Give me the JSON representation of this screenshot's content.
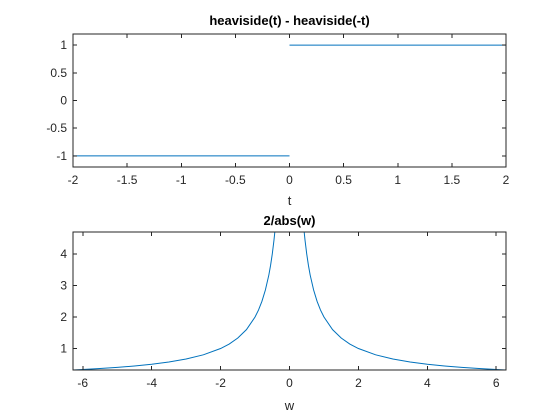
{
  "chart_data": [
    {
      "type": "line",
      "title": "heaviside(t) - heaviside(-t)",
      "xlabel": "t",
      "ylabel": "",
      "xlim": [
        -2,
        2
      ],
      "ylim": [
        -1.2,
        1.2
      ],
      "xticks": [
        -2,
        -1.5,
        -1,
        -0.5,
        0,
        0.5,
        1,
        1.5,
        2
      ],
      "xtick_labels": [
        "-2",
        "-1.5",
        "-1",
        "-0.5",
        "0",
        "0.5",
        "1",
        "1.5",
        "2"
      ],
      "yticks": [
        -1,
        -0.5,
        0,
        0.5,
        1
      ],
      "ytick_labels": [
        "-1",
        "-0.5",
        "0",
        "0.5",
        "1"
      ],
      "grid": false,
      "series": [
        {
          "color": "#0072BD",
          "segments": [
            {
              "x": [
                -2,
                0
              ],
              "y": [
                -1,
                -1
              ]
            },
            {
              "x": [
                0,
                2
              ],
              "y": [
                1,
                1
              ]
            }
          ]
        }
      ]
    },
    {
      "type": "line",
      "title": "2/abs(w)",
      "xlabel": "w",
      "ylabel": "",
      "xlim": [
        -6.283,
        6.283
      ],
      "ylim": [
        0.318,
        4.7
      ],
      "xticks": [
        -6,
        -4,
        -2,
        0,
        2,
        4,
        6
      ],
      "xtick_labels": [
        "-6",
        "-4",
        "-2",
        "0",
        "2",
        "4",
        "6"
      ],
      "yticks": [
        1,
        2,
        3,
        4
      ],
      "ytick_labels": [
        "1",
        "2",
        "3",
        "4"
      ],
      "grid": false,
      "series": [
        {
          "color": "#0072BD",
          "segments": [
            {
              "x": [
                -6.283,
                -6,
                -5.5,
                -5,
                -4.5,
                -4,
                -3.5,
                -3,
                -2.5,
                -2,
                -1.75,
                -1.5,
                -1.25,
                -1,
                -0.9,
                -0.8,
                -0.7,
                -0.6,
                -0.55,
                -0.5,
                -0.45,
                -0.426
              ],
              "y": [
                0.318,
                0.333,
                0.364,
                0.4,
                0.444,
                0.5,
                0.571,
                0.667,
                0.8,
                1,
                1.143,
                1.333,
                1.6,
                2,
                2.222,
                2.5,
                2.857,
                3.333,
                3.636,
                4,
                4.444,
                4.7
              ]
            },
            {
              "x": [
                0.426,
                0.45,
                0.5,
                0.55,
                0.6,
                0.7,
                0.8,
                0.9,
                1,
                1.25,
                1.5,
                1.75,
                2,
                2.5,
                3,
                3.5,
                4,
                4.5,
                5,
                5.5,
                6,
                6.283
              ],
              "y": [
                4.7,
                4.444,
                4,
                3.636,
                3.333,
                2.857,
                2.5,
                2.222,
                2,
                1.6,
                1.333,
                1.143,
                1,
                0.8,
                0.667,
                0.571,
                0.5,
                0.444,
                0.4,
                0.364,
                0.333,
                0.318
              ]
            }
          ]
        }
      ]
    }
  ]
}
